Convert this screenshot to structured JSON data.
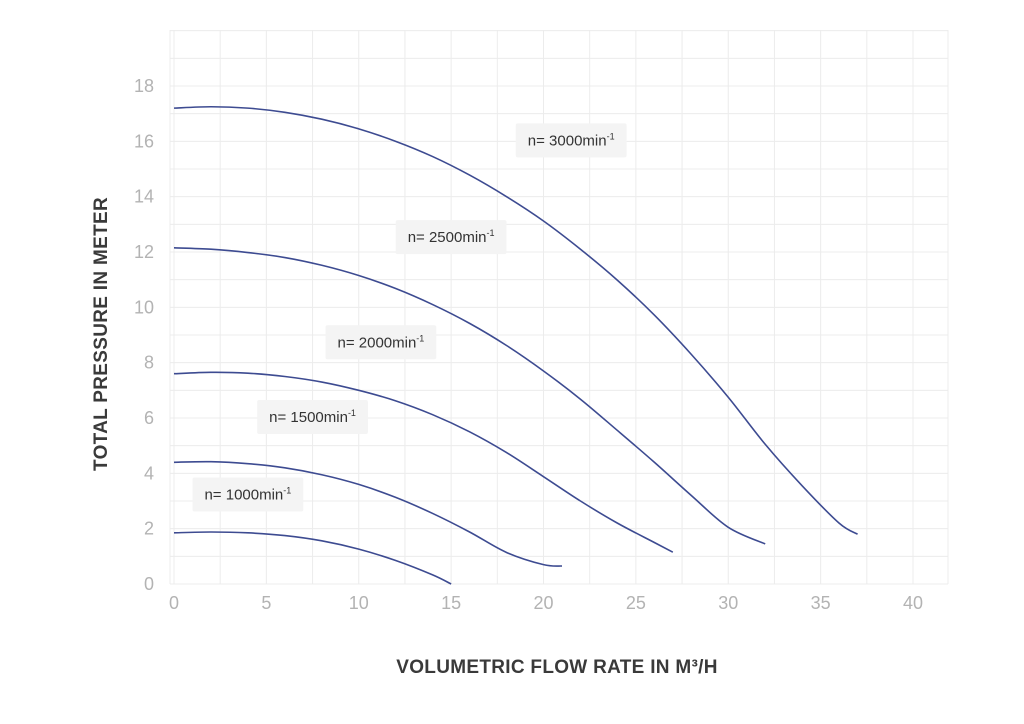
{
  "chart_data": {
    "type": "line",
    "xlabel": "VOLUMETRIC FLOW RATE IN M³/H",
    "ylabel": "TOTAL PRESSURE IN METER",
    "xlim": [
      0,
      42
    ],
    "ylim": [
      0,
      20
    ],
    "x_ticks": [
      0,
      5,
      10,
      15,
      20,
      25,
      30,
      35,
      40
    ],
    "y_ticks": [
      0,
      2,
      4,
      6,
      8,
      10,
      12,
      14,
      16,
      18
    ],
    "grid": true,
    "line_color": "#3d4b91",
    "series": [
      {
        "name": "n= 1000min-1",
        "label_main": "n= 1000min",
        "label_sup": "-1",
        "label_anchor": [
          1,
          3.2
        ],
        "x": [
          0,
          2,
          4,
          6,
          8,
          10,
          12,
          14,
          15
        ],
        "y": [
          1.85,
          1.88,
          1.85,
          1.75,
          1.56,
          1.26,
          0.85,
          0.33,
          0.0
        ]
      },
      {
        "name": "n= 1500min-1",
        "label_main": "n= 1500min",
        "label_sup": "-1",
        "label_anchor": [
          4.5,
          6.0
        ],
        "x": [
          0,
          2,
          4,
          6,
          8,
          10,
          12,
          14,
          16,
          18,
          20,
          21
        ],
        "y": [
          4.4,
          4.42,
          4.35,
          4.2,
          3.95,
          3.6,
          3.13,
          2.55,
          1.88,
          1.14,
          0.7,
          0.65
        ]
      },
      {
        "name": "n= 2000min-1",
        "label_main": "n= 2000min",
        "label_sup": "-1",
        "label_anchor": [
          8.2,
          8.7
        ],
        "x": [
          0,
          2,
          4,
          6,
          8,
          10,
          12,
          14,
          16,
          18,
          20,
          22,
          24,
          26,
          27
        ],
        "y": [
          7.6,
          7.65,
          7.62,
          7.5,
          7.3,
          7.0,
          6.62,
          6.12,
          5.5,
          4.75,
          3.88,
          3.0,
          2.2,
          1.5,
          1.15
        ]
      },
      {
        "name": "n= 2500min-1",
        "label_main": "n= 2500min",
        "label_sup": "-1",
        "label_anchor": [
          12.0,
          12.5
        ],
        "x": [
          0,
          2,
          4,
          6,
          8,
          10,
          12,
          14,
          16,
          18,
          20,
          22,
          24,
          26,
          28,
          30,
          32
        ],
        "y": [
          12.15,
          12.1,
          11.98,
          11.8,
          11.52,
          11.15,
          10.68,
          10.1,
          9.42,
          8.62,
          7.7,
          6.68,
          5.55,
          4.4,
          3.2,
          2.05,
          1.45
        ]
      },
      {
        "name": "n= 3000min-1",
        "label_main": "n= 3000min",
        "label_sup": "-1",
        "label_anchor": [
          18.5,
          16.0
        ],
        "x": [
          0,
          2,
          4,
          6,
          8,
          10,
          12,
          14,
          16,
          18,
          20,
          22,
          24,
          26,
          28,
          30,
          32,
          34,
          36,
          37
        ],
        "y": [
          17.2,
          17.25,
          17.2,
          17.05,
          16.8,
          16.45,
          16.0,
          15.45,
          14.78,
          14.0,
          13.12,
          12.1,
          10.98,
          9.72,
          8.3,
          6.75,
          5.05,
          3.55,
          2.2,
          1.8
        ]
      }
    ]
  }
}
